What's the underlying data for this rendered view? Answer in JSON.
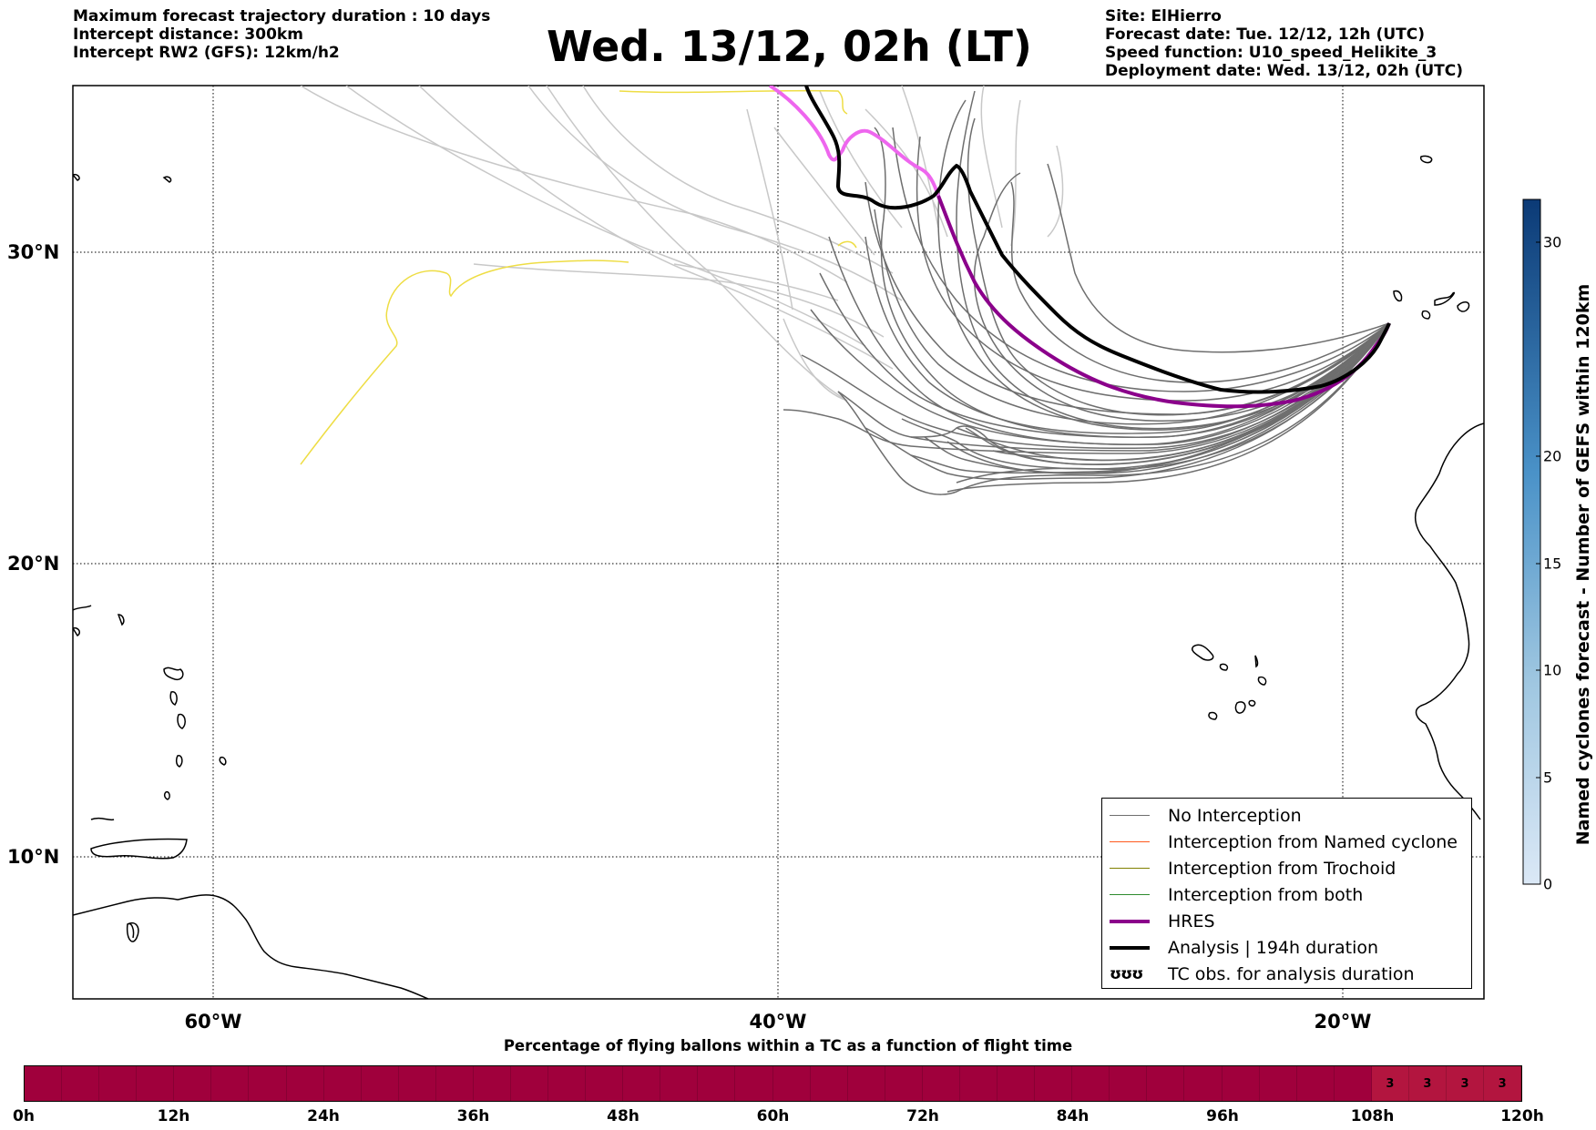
{
  "header": {
    "left_lines": [
      "Maximum forecast trajectory duration : 10 days",
      "Intercept distance: 300km",
      "Intercept RW2 (GFS):  12km/h2"
    ],
    "title": "Wed. 13/12, 02h (LT)",
    "right_lines": [
      "Site: ElHierro",
      "Forecast date: Tue. 12/12, 12h (UTC)",
      "Speed function: U10_speed_Helikite_3",
      "Deployment date: Wed. 13/12, 02h (UTC)"
    ]
  },
  "map": {
    "lat_labels": [
      "30°N",
      "20°N",
      "10°N"
    ],
    "lon_labels": [
      "60°W",
      "40°W",
      "20°W"
    ],
    "grid": "dotted",
    "colors": {
      "no_interception": "#6e6e6e",
      "far_members": "#c8c8c8",
      "named_cyclone": "#ff5a1e",
      "trochoid": "#808000",
      "both": "#2e8b2e",
      "hres": "#8b008b",
      "hres_early": "#ee66ee",
      "analysis": "#000000",
      "yellow_member": "#eedd44"
    }
  },
  "legend": {
    "items": [
      {
        "label": "No Interception",
        "color": "#6e6e6e",
        "weight": 1
      },
      {
        "label": "Interception from Named cyclone",
        "color": "#ff5a1e",
        "weight": 1
      },
      {
        "label": "Interception from Trochoid",
        "color": "#808000",
        "weight": 1
      },
      {
        "label": "Interception from both",
        "color": "#2e8b2e",
        "weight": 1
      },
      {
        "label": "HRES",
        "color": "#8b008b",
        "weight": 4
      },
      {
        "label": "Analysis | 194h duration",
        "color": "#000000",
        "weight": 4
      }
    ],
    "tc_obs_glyph": "ʊʊʊ",
    "tc_obs_label": "TC obs. for analysis duration"
  },
  "colorbar": {
    "label": "Named cyclones forecast - Number of GEFS within 120km",
    "ticks": [
      "0",
      "5",
      "10",
      "15",
      "20",
      "30"
    ],
    "min": 0,
    "max": 32
  },
  "bar": {
    "title": "Percentage of flying ballons within a TC as a function of flight time",
    "time_labels": [
      "0h",
      "12h",
      "24h",
      "36h",
      "48h",
      "60h",
      "72h",
      "84h",
      "96h",
      "108h",
      "120h"
    ],
    "cell_values": [
      "",
      "",
      "",
      "",
      "",
      "",
      "",
      "",
      "",
      "",
      "",
      "",
      "",
      "",
      "",
      "",
      "",
      "",
      "",
      "",
      "",
      "",
      "",
      "",
      "",
      "",
      "",
      "",
      "",
      "",
      "",
      "",
      "",
      "",
      "",
      "",
      "3",
      "3",
      "3",
      "3"
    ],
    "base_color": "#a0003c",
    "highlight_color": "#b3153f"
  }
}
